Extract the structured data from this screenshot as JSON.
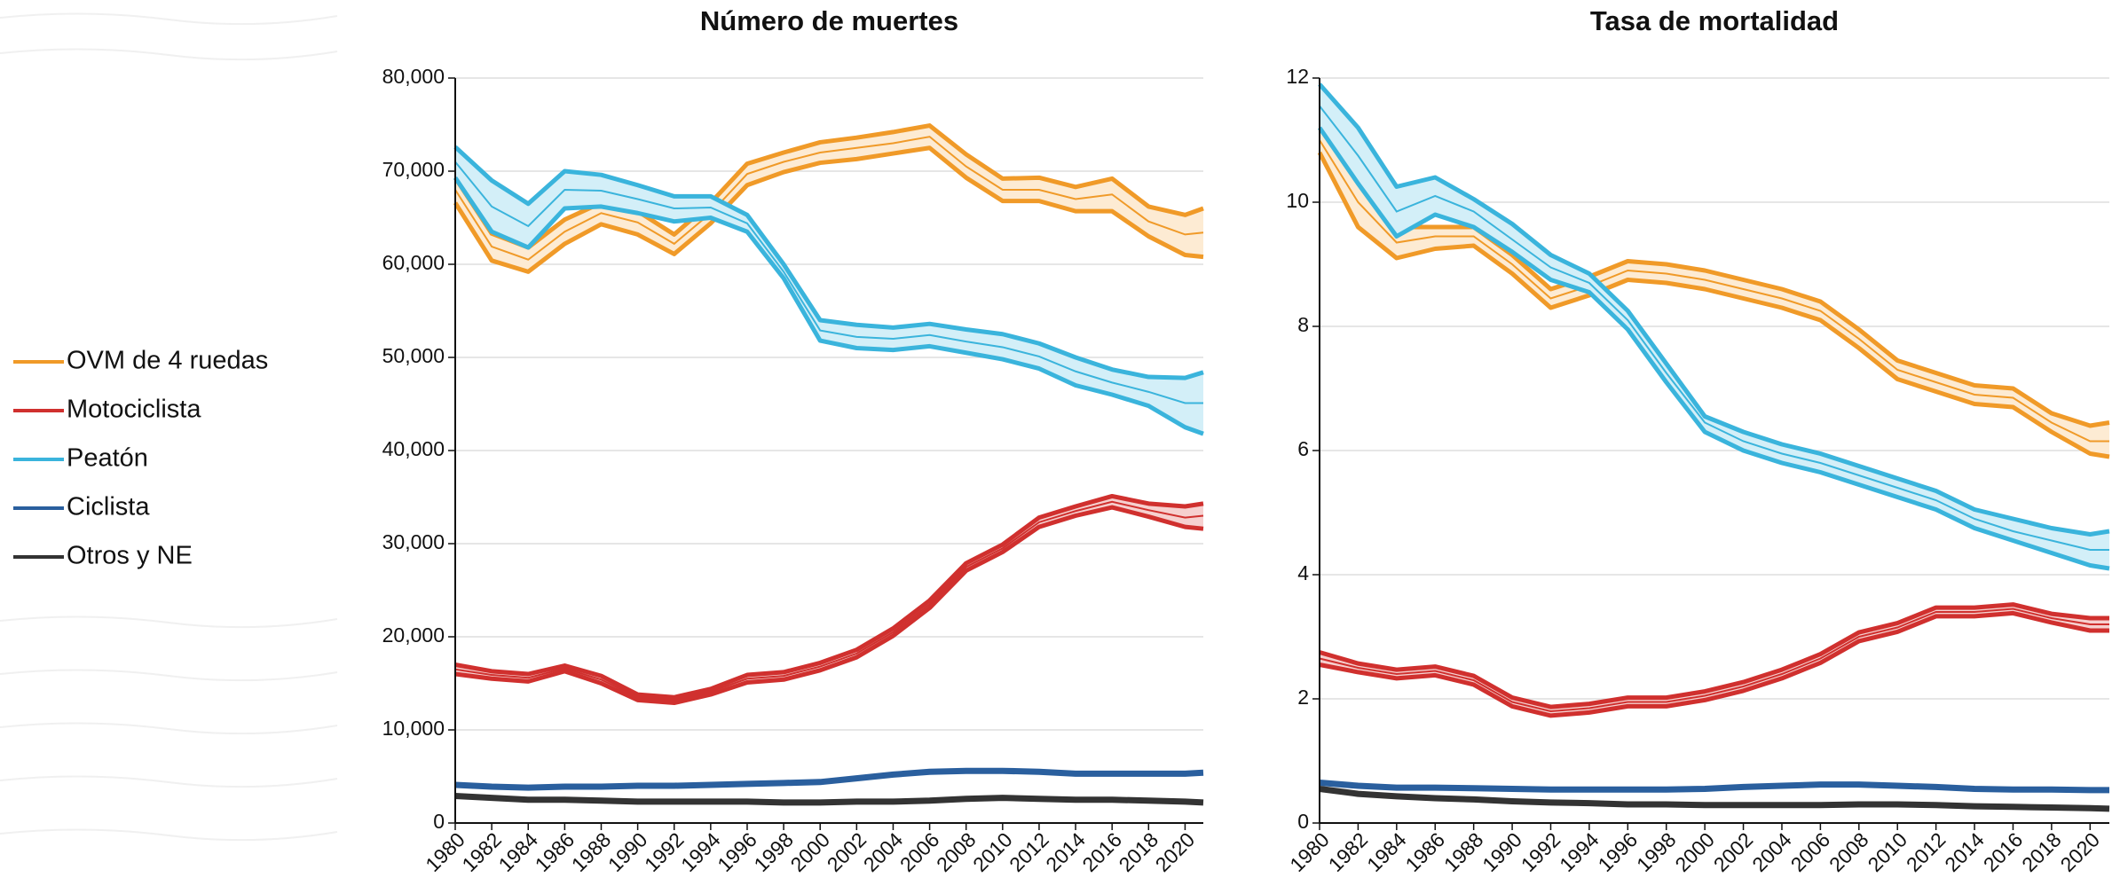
{
  "chart_data": [
    {
      "type": "line",
      "title": "Número de muertes",
      "x": [
        1980,
        1982,
        1984,
        1986,
        1988,
        1990,
        1992,
        1994,
        1996,
        1998,
        2000,
        2002,
        2004,
        2006,
        2008,
        2010,
        2012,
        2014,
        2016,
        2018,
        2020,
        2021
      ],
      "xlim": [
        1980,
        2021
      ],
      "xticks": [
        1980,
        1982,
        1984,
        1986,
        1988,
        1990,
        1992,
        1994,
        1996,
        1998,
        2000,
        2002,
        2004,
        2006,
        2008,
        2010,
        2012,
        2014,
        2016,
        2018,
        2020
      ],
      "ylim": [
        0,
        80000
      ],
      "yticks": [
        0,
        {
          "value": 10000,
          "label": "10,000"
        },
        {
          "value": 20000,
          "label": "20,000"
        },
        {
          "value": 30000,
          "label": "30,000"
        },
        {
          "value": 40000,
          "label": "40,000"
        },
        {
          "value": 50000,
          "label": "50,000"
        },
        {
          "value": 60000,
          "label": "60,000"
        },
        {
          "value": 70000,
          "label": "70,000"
        },
        {
          "value": 80000,
          "label": "80,000"
        }
      ],
      "grid": true,
      "series": [
        {
          "name": "OVM de 4 ruedas",
          "color": "#f09a28",
          "values": [
            68000,
            61900,
            60500,
            63500,
            65500,
            64500,
            62200,
            65500,
            69700,
            71000,
            72000,
            72500,
            73000,
            73700,
            70500,
            68000,
            68000,
            67000,
            67500,
            64600,
            63200,
            63400
          ],
          "upper": [
            69300,
            63300,
            61800,
            64800,
            66600,
            65700,
            63200,
            66600,
            70800,
            72000,
            73100,
            73600,
            74200,
            74900,
            71800,
            69200,
            69300,
            68300,
            69200,
            66200,
            65300,
            66000
          ],
          "lower": [
            66600,
            60400,
            59200,
            62200,
            64300,
            63200,
            61100,
            64400,
            68500,
            69900,
            70900,
            71300,
            71900,
            72500,
            69300,
            66800,
            66800,
            65700,
            65700,
            63000,
            61000,
            60800
          ]
        },
        {
          "name": "Motociclista",
          "color": "#d0302e",
          "values": [
            16500,
            15900,
            15600,
            16600,
            15400,
            13500,
            13200,
            14100,
            15500,
            15800,
            16800,
            18200,
            20500,
            23500,
            27500,
            29500,
            32300,
            33500,
            34500,
            33600,
            32800,
            33000
          ],
          "upper": [
            17000,
            16300,
            16000,
            16900,
            15800,
            13800,
            13500,
            14400,
            15900,
            16200,
            17200,
            18600,
            20900,
            23900,
            27900,
            29900,
            32800,
            34000,
            35100,
            34300,
            34000,
            34300
          ],
          "lower": [
            16000,
            15500,
            15200,
            16300,
            15000,
            13200,
            12900,
            13800,
            15100,
            15400,
            16400,
            17800,
            20100,
            23100,
            27100,
            29100,
            31800,
            33000,
            33900,
            32900,
            31800,
            31600
          ]
        },
        {
          "name": "Peatón",
          "color": "#3ab4dc",
          "values": [
            71000,
            66200,
            64100,
            68000,
            67900,
            67000,
            66000,
            66100,
            64400,
            59200,
            52900,
            52200,
            52000,
            52400,
            51700,
            51100,
            50100,
            48500,
            47300,
            46300,
            45100,
            45100
          ],
          "upper": [
            72600,
            69000,
            66500,
            70000,
            69600,
            68500,
            67300,
            67300,
            65300,
            60000,
            54000,
            53500,
            53200,
            53600,
            53000,
            52500,
            51500,
            50000,
            48700,
            47900,
            47800,
            48400
          ],
          "lower": [
            69300,
            63500,
            61800,
            66000,
            66200,
            65500,
            64600,
            65000,
            63500,
            58500,
            51800,
            51000,
            50800,
            51200,
            50500,
            49800,
            48800,
            47000,
            46000,
            44800,
            42500,
            41800
          ]
        },
        {
          "name": "Ciclista",
          "color": "#2a5f9e",
          "values": [
            4100,
            3900,
            3800,
            3900,
            3900,
            4000,
            4000,
            4100,
            4200,
            4300,
            4400,
            4800,
            5200,
            5500,
            5600,
            5600,
            5500,
            5300,
            5300,
            5300,
            5300,
            5400
          ]
        },
        {
          "name": "Otros y NE",
          "color": "#333333",
          "values": [
            2900,
            2700,
            2500,
            2500,
            2400,
            2300,
            2300,
            2300,
            2300,
            2200,
            2200,
            2300,
            2300,
            2400,
            2600,
            2700,
            2600,
            2500,
            2500,
            2400,
            2300,
            2200
          ]
        }
      ]
    },
    {
      "type": "line",
      "title": "Tasa de mortalidad",
      "x": [
        1980,
        1982,
        1984,
        1986,
        1988,
        1990,
        1992,
        1994,
        1996,
        1998,
        2000,
        2002,
        2004,
        2006,
        2008,
        2010,
        2012,
        2014,
        2016,
        2018,
        2020,
        2021
      ],
      "xlim": [
        1980,
        2021
      ],
      "xticks": [
        1980,
        1982,
        1984,
        1986,
        1988,
        1990,
        1992,
        1994,
        1996,
        1998,
        2000,
        2002,
        2004,
        2006,
        2008,
        2010,
        2012,
        2014,
        2016,
        2018,
        2020
      ],
      "ylim": [
        0,
        12
      ],
      "yticks": [
        0,
        2,
        4,
        6,
        8,
        10,
        12
      ],
      "grid": true,
      "series": [
        {
          "name": "OVM de 4 ruedas",
          "color": "#f09a28",
          "values": [
            11.0,
            10.0,
            9.35,
            9.45,
            9.45,
            9.0,
            8.45,
            8.65,
            8.9,
            8.85,
            8.75,
            8.6,
            8.45,
            8.25,
            7.8,
            7.3,
            7.1,
            6.9,
            6.85,
            6.45,
            6.15,
            6.15
          ],
          "upper": [
            11.2,
            10.4,
            9.6,
            9.6,
            9.6,
            9.15,
            8.6,
            8.8,
            9.05,
            9.0,
            8.9,
            8.75,
            8.6,
            8.4,
            7.95,
            7.45,
            7.25,
            7.05,
            7.0,
            6.6,
            6.4,
            6.45
          ],
          "lower": [
            10.8,
            9.6,
            9.1,
            9.25,
            9.3,
            8.85,
            8.3,
            8.5,
            8.75,
            8.7,
            8.6,
            8.45,
            8.3,
            8.1,
            7.65,
            7.15,
            6.95,
            6.75,
            6.7,
            6.3,
            5.95,
            5.9
          ]
        },
        {
          "name": "Motociclista",
          "color": "#d0302e",
          "values": [
            2.65,
            2.5,
            2.4,
            2.45,
            2.3,
            1.95,
            1.8,
            1.85,
            1.95,
            1.95,
            2.05,
            2.2,
            2.4,
            2.65,
            3.0,
            3.15,
            3.4,
            3.4,
            3.45,
            3.3,
            3.2,
            3.2
          ],
          "upper": [
            2.75,
            2.57,
            2.47,
            2.52,
            2.37,
            2.02,
            1.87,
            1.92,
            2.02,
            2.02,
            2.12,
            2.27,
            2.47,
            2.72,
            3.07,
            3.22,
            3.47,
            3.47,
            3.52,
            3.37,
            3.3,
            3.3
          ],
          "lower": [
            2.55,
            2.43,
            2.33,
            2.38,
            2.23,
            1.88,
            1.73,
            1.78,
            1.88,
            1.88,
            1.98,
            2.13,
            2.33,
            2.58,
            2.93,
            3.08,
            3.33,
            3.33,
            3.38,
            3.23,
            3.1,
            3.1
          ]
        },
        {
          "name": "Peatón",
          "color": "#3ab4dc",
          "values": [
            11.55,
            10.75,
            9.85,
            10.1,
            9.85,
            9.4,
            8.95,
            8.7,
            8.1,
            7.25,
            6.45,
            6.15,
            5.95,
            5.8,
            5.6,
            5.4,
            5.2,
            4.9,
            4.7,
            4.55,
            4.4,
            4.4
          ],
          "upper": [
            11.9,
            11.2,
            10.25,
            10.4,
            10.05,
            9.65,
            9.15,
            8.85,
            8.25,
            7.4,
            6.55,
            6.3,
            6.1,
            5.95,
            5.75,
            5.55,
            5.35,
            5.05,
            4.9,
            4.75,
            4.65,
            4.7
          ],
          "lower": [
            11.2,
            10.3,
            9.45,
            9.8,
            9.6,
            9.2,
            8.75,
            8.55,
            7.95,
            7.1,
            6.3,
            6.0,
            5.8,
            5.65,
            5.45,
            5.25,
            5.05,
            4.75,
            4.55,
            4.35,
            4.15,
            4.1
          ]
        },
        {
          "name": "Ciclista",
          "color": "#2a5f9e",
          "values": [
            0.65,
            0.6,
            0.57,
            0.57,
            0.56,
            0.55,
            0.54,
            0.54,
            0.54,
            0.54,
            0.55,
            0.58,
            0.6,
            0.62,
            0.62,
            0.6,
            0.58,
            0.55,
            0.54,
            0.54,
            0.53,
            0.53
          ]
        },
        {
          "name": "Otros y NE",
          "color": "#333333",
          "values": [
            0.55,
            0.47,
            0.43,
            0.4,
            0.38,
            0.35,
            0.33,
            0.32,
            0.3,
            0.3,
            0.29,
            0.29,
            0.29,
            0.29,
            0.3,
            0.3,
            0.29,
            0.27,
            0.26,
            0.25,
            0.24,
            0.23
          ]
        }
      ]
    }
  ]
}
